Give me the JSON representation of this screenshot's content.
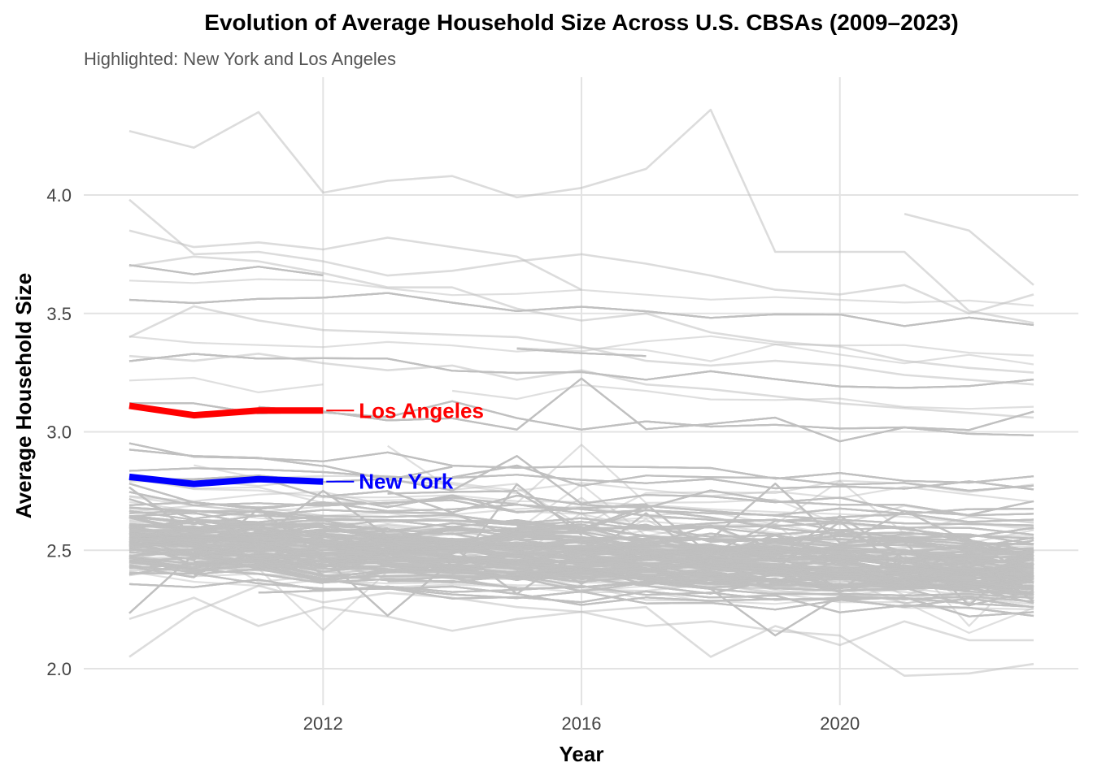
{
  "chart_data": {
    "type": "line",
    "title": "Evolution of Average Household Size Across U.S. CBSAs (2009–2023)",
    "subtitle": "Highlighted: New York and Los Angeles",
    "xlabel": "Year",
    "ylabel": "Average Household Size",
    "xlim": [
      2009,
      2023
    ],
    "ylim": [
      1.95,
      4.4
    ],
    "xticks": [
      2012,
      2016,
      2020
    ],
    "yticks": [
      2.0,
      2.5,
      3.0,
      3.5,
      4.0
    ],
    "grid": true,
    "background_series_color": "#c0c0c0",
    "background_series_count_approx": 900,
    "highlighted_series": [
      {
        "name": "Los Angeles",
        "color": "#ff0000",
        "x": [
          2009,
          2010,
          2011,
          2012
        ],
        "y": [
          3.11,
          3.07,
          3.09,
          3.09
        ]
      },
      {
        "name": "New York",
        "color": "#0000ff",
        "x": [
          2009,
          2010,
          2011,
          2012
        ],
        "y": [
          2.81,
          2.78,
          2.8,
          2.79
        ]
      }
    ],
    "background_series_sample": [
      {
        "x": [
          2009,
          2010,
          2011,
          2012
        ],
        "y": [
          4.27,
          4.2,
          4.35,
          4.01
        ]
      },
      {
        "x": [
          2012,
          2013,
          2014,
          2015,
          2016,
          2017,
          2018,
          2019,
          2020,
          2021,
          2022,
          2023
        ],
        "y": [
          4.01,
          4.06,
          4.08,
          3.99,
          4.03,
          4.11,
          4.36,
          3.76,
          3.76,
          3.76,
          3.51,
          3.46
        ]
      },
      {
        "x": [
          2021,
          2022,
          2023
        ],
        "y": [
          3.92,
          3.85,
          3.62
        ]
      },
      {
        "x": [
          2009,
          2010,
          2011,
          2012,
          2013,
          2014,
          2015,
          2016,
          2017,
          2018,
          2019,
          2020,
          2021,
          2022,
          2023
        ],
        "y": [
          3.98,
          3.75,
          3.76,
          3.72,
          3.66,
          3.68,
          3.72,
          3.75,
          3.71,
          3.66,
          3.6,
          3.58,
          3.62,
          3.5,
          3.58
        ]
      },
      {
        "x": [
          2009,
          2010,
          2011,
          2012,
          2013,
          2014,
          2015,
          2016
        ],
        "y": [
          3.85,
          3.78,
          3.8,
          3.77,
          3.82,
          3.78,
          3.74,
          3.6
        ]
      },
      {
        "x": [
          2009,
          2010,
          2011,
          2012,
          2013,
          2014,
          2015,
          2016,
          2017,
          2018,
          2019,
          2020,
          2021,
          2022,
          2023
        ],
        "y": [
          3.7,
          3.74,
          3.72,
          3.67,
          3.61,
          3.61,
          3.52,
          3.47,
          3.5,
          3.42,
          3.38,
          3.36,
          3.3,
          3.27,
          3.25
        ]
      },
      {
        "x": [
          2009,
          2010,
          2011,
          2012,
          2013,
          2014,
          2015,
          2016,
          2017,
          2018,
          2019,
          2020,
          2021,
          2022,
          2023
        ],
        "y": [
          3.4,
          3.53,
          3.47,
          3.43,
          3.42,
          3.41,
          3.4,
          3.36,
          3.3,
          3.28,
          3.3,
          3.28,
          3.24,
          3.22,
          3.2
        ]
      },
      {
        "x": [
          2009,
          2010,
          2011,
          2012,
          2013,
          2014,
          2015,
          2016,
          2017,
          2018,
          2019,
          2020,
          2021,
          2022,
          2023
        ],
        "y": [
          3.32,
          3.3,
          3.33,
          3.29,
          3.26,
          3.28,
          3.22,
          3.26,
          3.2,
          3.18,
          3.15,
          3.12,
          3.1,
          3.08,
          3.06
        ]
      },
      {
        "x": [
          2009,
          2010,
          2011,
          2012,
          2013,
          2014,
          2015,
          2016,
          2017,
          2018,
          2019,
          2020,
          2021,
          2022,
          2023
        ],
        "y": [
          2.21,
          2.3,
          2.18,
          2.26,
          2.22,
          2.16,
          2.21,
          2.24,
          2.18,
          2.2,
          2.16,
          2.14,
          1.97,
          1.98,
          2.02
        ]
      },
      {
        "x": [
          2009,
          2010,
          2011,
          2012,
          2013,
          2014,
          2015,
          2016,
          2017,
          2018,
          2019,
          2020,
          2021,
          2022,
          2023
        ],
        "y": [
          2.05,
          2.24,
          2.35,
          2.28,
          2.32,
          2.3,
          2.26,
          2.24,
          2.26,
          2.05,
          2.18,
          2.1,
          2.2,
          2.12,
          2.12
        ]
      }
    ]
  }
}
